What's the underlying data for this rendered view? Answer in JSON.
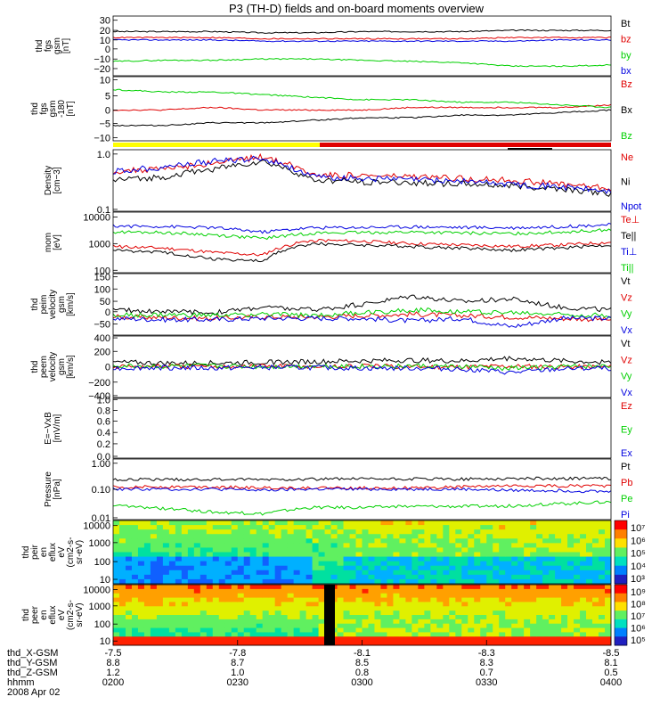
{
  "title": "P3 (TH-D) fields and on-board moments overview",
  "colors": {
    "black": "#000000",
    "red": "#e00000",
    "green": "#00d000",
    "blue": "#0000e0",
    "lime": "#20e020",
    "yellow": "#ffff00"
  },
  "chart_data": [
    {
      "type": "line",
      "id": "fgs-gsm",
      "ylabel": [
        "thd",
        "fgs",
        "gsm",
        "[nT]"
      ],
      "yticks": [
        "30",
        "20",
        "10",
        "0",
        "−10",
        "−20"
      ],
      "ylim": [
        -20,
        30
      ],
      "series": [
        {
          "name": "Bt",
          "color": "#000000",
          "values": [
            17,
            17,
            17,
            16,
            16,
            17,
            17,
            17,
            18,
            18,
            18
          ]
        },
        {
          "name": "bz",
          "color": "#e00000",
          "values": [
            12,
            12,
            12,
            11,
            11,
            11,
            11,
            11,
            12,
            12,
            12
          ]
        },
        {
          "name": "by",
          "color": "#00d000",
          "values": [
            -8,
            -7,
            -7,
            -6,
            -6,
            -7,
            -8,
            -9,
            -12,
            -12,
            -11
          ]
        },
        {
          "name": "bx",
          "color": "#0000e0",
          "values": [
            10,
            10,
            10,
            9,
            9,
            9,
            9,
            9,
            9,
            10,
            10
          ]
        }
      ]
    },
    {
      "type": "line",
      "id": "fgs-gse-lbp",
      "ylabel": [
        "thd",
        "fgs",
        "gsm",
        "-180",
        "[nT]"
      ],
      "yticks": [
        "10",
        "5",
        "0",
        "−5",
        "−10"
      ],
      "ylim": [
        -13,
        12
      ],
      "series": [
        {
          "name": "Bz",
          "color": "#e00000",
          "values": [
            -1,
            -1,
            0,
            -1,
            -1,
            -1,
            0,
            0,
            0,
            0,
            1
          ]
        },
        {
          "name": "Bx",
          "color": "#000000",
          "values": [
            -7,
            -7,
            -6,
            -6,
            -5,
            -4,
            -4,
            -3,
            -3,
            -2,
            -1
          ]
        },
        {
          "name": "Bz",
          "color": "#00d000",
          "values": [
            7,
            6,
            6,
            5,
            4,
            3,
            3,
            2,
            2,
            1,
            0
          ]
        }
      ]
    },
    {
      "type": "line",
      "id": "density",
      "scale": "log",
      "ylabel": [
        "Density",
        "[cm−3]"
      ],
      "yticks": [
        "1.0",
        "0.1"
      ],
      "ylim": [
        0.1,
        1.2
      ],
      "series": [
        {
          "name": "Ne",
          "color": "#e00000",
          "values": [
            0.5,
            0.55,
            0.7,
            0.9,
            0.45,
            0.42,
            0.4,
            0.38,
            0.35,
            0.3,
            0.25
          ]
        },
        {
          "name": "Ni",
          "color": "#000000",
          "values": [
            0.35,
            0.4,
            0.55,
            0.75,
            0.35,
            0.33,
            0.32,
            0.3,
            0.28,
            0.25,
            0.2
          ]
        },
        {
          "name": "Npot",
          "color": "#0000e0",
          "values": [
            0.5,
            0.6,
            0.75,
            0.85,
            0.4,
            0.38,
            0.36,
            0.34,
            0.3,
            0.27,
            0.22
          ]
        }
      ]
    },
    {
      "type": "line",
      "id": "temperature",
      "scale": "log",
      "ylabel": [
        "mom",
        "[eV]"
      ],
      "yticks": [
        "10000",
        "1000",
        "100"
      ],
      "ylim": [
        100,
        12000
      ],
      "series": [
        {
          "name": "Te⊥",
          "color": "#e00000",
          "values": [
            800,
            700,
            500,
            400,
            1300,
            1200,
            1000,
            900,
            800,
            900,
            1100
          ]
        },
        {
          "name": "Te||",
          "color": "#000000",
          "values": [
            600,
            500,
            300,
            250,
            1000,
            900,
            800,
            700,
            600,
            700,
            900
          ]
        },
        {
          "name": "Ti⊥",
          "color": "#0000e0",
          "values": [
            4000,
            3900,
            3500,
            2500,
            3500,
            3600,
            3800,
            3600,
            3500,
            3800,
            4500
          ]
        },
        {
          "name": "Ti||",
          "color": "#00d000",
          "values": [
            2500,
            2400,
            2000,
            1500,
            2300,
            2400,
            2500,
            2300,
            2200,
            2500,
            3000
          ]
        }
      ]
    },
    {
      "type": "line",
      "id": "peim-velocity",
      "ylabel": [
        "thd",
        "peim",
        "velocity",
        "gsm",
        "[km/s]"
      ],
      "yticks": [
        "150",
        "100",
        "50",
        "0",
        "−50"
      ],
      "ylim": [
        -60,
        160
      ],
      "series": [
        {
          "name": "Vt",
          "color": "#000000",
          "values": [
            30,
            25,
            20,
            40,
            30,
            50,
            80,
            60,
            70,
            40,
            30
          ]
        },
        {
          "name": "Vz",
          "color": "#e00000",
          "values": [
            5,
            3,
            0,
            5,
            5,
            10,
            15,
            10,
            5,
            0,
            -5
          ]
        },
        {
          "name": "Vy",
          "color": "#00d000",
          "values": [
            10,
            12,
            10,
            15,
            10,
            20,
            30,
            25,
            20,
            15,
            10
          ]
        },
        {
          "name": "Vx",
          "color": "#0000e0",
          "values": [
            0,
            -5,
            -5,
            0,
            0,
            0,
            -10,
            0,
            -30,
            0,
            0
          ]
        }
      ]
    },
    {
      "type": "line",
      "id": "peem-velocity",
      "ylabel": [
        "thd",
        "peem",
        "velocity",
        "gsm",
        "[km/s]"
      ],
      "yticks": [
        "400",
        "200",
        "0",
        "−200",
        "−400"
      ],
      "ylim": [
        -420,
        420
      ],
      "series": [
        {
          "name": "Vt",
          "color": "#000000",
          "values": [
            60,
            50,
            50,
            60,
            70,
            80,
            90,
            80,
            120,
            80,
            60
          ]
        },
        {
          "name": "Vz",
          "color": "#e00000",
          "values": [
            0,
            5,
            0,
            10,
            0,
            5,
            0,
            0,
            10,
            0,
            0
          ]
        },
        {
          "name": "Vy",
          "color": "#00d000",
          "values": [
            10,
            5,
            10,
            0,
            10,
            5,
            10,
            0,
            -20,
            0,
            5
          ]
        },
        {
          "name": "Vx",
          "color": "#0000e0",
          "values": [
            -20,
            -10,
            -20,
            -10,
            -10,
            -20,
            -20,
            -30,
            -80,
            -30,
            -20
          ]
        }
      ]
    },
    {
      "type": "line",
      "id": "efield",
      "ylabel": [
        "E=−VxB",
        "[mV/m]"
      ],
      "yticks": [
        "1.0",
        "0.8",
        "0.6",
        "0.4",
        "0.2",
        "0.0"
      ],
      "ylim": [
        0,
        1
      ],
      "series": [
        {
          "name": "Ez",
          "color": "#e00000",
          "values": []
        },
        {
          "name": "Ey",
          "color": "#00d000",
          "values": []
        },
        {
          "name": "Ex",
          "color": "#0000e0",
          "values": []
        }
      ]
    },
    {
      "type": "line",
      "id": "pressure",
      "scale": "log",
      "ylabel": [
        "Pressure",
        "[nPa]"
      ],
      "yticks": [
        "1.00",
        "0.10",
        "0.01"
      ],
      "ylim": [
        0.008,
        1.2
      ],
      "series": [
        {
          "name": "Pt",
          "color": "#000000",
          "values": [
            0.22,
            0.22,
            0.22,
            0.22,
            0.23,
            0.23,
            0.23,
            0.23,
            0.24,
            0.24,
            0.24
          ]
        },
        {
          "name": "Pb",
          "color": "#e00000",
          "values": [
            0.12,
            0.12,
            0.12,
            0.11,
            0.11,
            0.11,
            0.11,
            0.12,
            0.13,
            0.13,
            0.13
          ]
        },
        {
          "name": "Pe",
          "color": "#00d000",
          "values": [
            0.025,
            0.02,
            0.015,
            0.013,
            0.022,
            0.022,
            0.024,
            0.024,
            0.025,
            0.03,
            0.035
          ]
        },
        {
          "name": "Pi",
          "color": "#0000e0",
          "values": [
            0.1,
            0.1,
            0.1,
            0.09,
            0.1,
            0.1,
            0.1,
            0.1,
            0.09,
            0.09,
            0.08
          ]
        }
      ]
    },
    {
      "type": "heatmap",
      "id": "peir-en-eflux",
      "ylabel": [
        "thd",
        "peir",
        "en",
        "eflux",
        "eV",
        "(cm2-s-",
        "sr-eV)"
      ],
      "yticks": [
        "10000",
        "1000",
        "100",
        "10"
      ],
      "colorbar_ticks": [
        "10⁷",
        "10⁶",
        "10⁵",
        "10⁴",
        "10³"
      ]
    },
    {
      "type": "heatmap",
      "id": "peer-en-eflux",
      "ylabel": [
        "thd",
        "peer",
        "en",
        "eflux",
        "eV",
        "(cm2-s-",
        "sr-eV)"
      ],
      "yticks": [
        "10000",
        "1000",
        "100",
        "10"
      ],
      "colorbar_ticks": [
        "10⁹",
        "10⁸",
        "10⁷",
        "10⁶",
        "10⁵"
      ]
    }
  ],
  "x_axis": {
    "row_labels": [
      "thd_X-GSM",
      "thd_Y-GSM",
      "thd_Z-GSM",
      "hhmm",
      "2008 Apr 02"
    ],
    "columns": [
      {
        "x": "-7.5",
        "y": "8.8",
        "z": "1.2",
        "t": "0200"
      },
      {
        "x": "-7.8",
        "y": "8.7",
        "z": "1.0",
        "t": "0230"
      },
      {
        "x": "-8.1",
        "y": "8.5",
        "z": "0.8",
        "t": "0300"
      },
      {
        "x": "-8.3",
        "y": "8.3",
        "z": "0.7",
        "t": "0330"
      },
      {
        "x": "-8.5",
        "y": "8.1",
        "z": "0.5",
        "t": "0400"
      }
    ]
  }
}
